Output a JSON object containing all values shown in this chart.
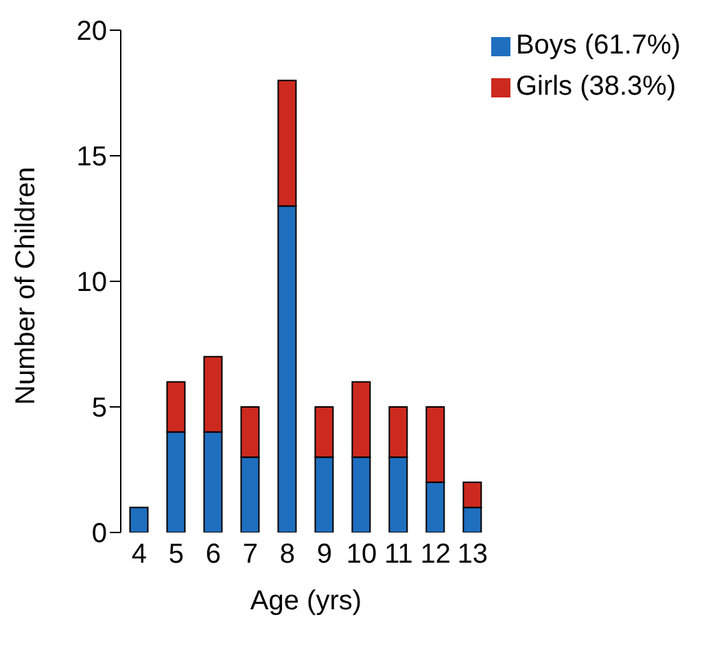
{
  "chart_data": {
    "type": "bar",
    "stacked": true,
    "xlabel": "Age (yrs)",
    "ylabel": "Number of Children",
    "categories": [
      "4",
      "5",
      "6",
      "7",
      "8",
      "9",
      "10",
      "11",
      "12",
      "13"
    ],
    "series": [
      {
        "name": "Boys (61.7%)",
        "color": "#1f6fbf",
        "values": [
          1,
          4,
          4,
          3,
          13,
          3,
          3,
          3,
          2,
          1
        ]
      },
      {
        "name": "Girls (38.3%)",
        "color": "#cc2a1e",
        "values": [
          0,
          2,
          3,
          2,
          5,
          2,
          3,
          2,
          3,
          1
        ]
      }
    ],
    "ylim": [
      0,
      20
    ],
    "yticks": [
      0,
      5,
      10,
      15,
      20
    ],
    "grid": false,
    "legend": "top right"
  }
}
